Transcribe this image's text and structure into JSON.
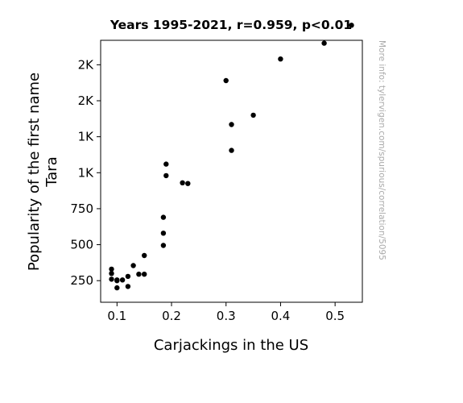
{
  "chart_data": {
    "type": "scatter",
    "title": "Years 1995-2021, r=0.959, p<0.01",
    "xlabel": "Carjackings in the US",
    "ylabel_lines": [
      "Popularity of the first name",
      "Tara"
    ],
    "side_note": "More info: tylervigen.com/spurious/correlation/5095",
    "xlim": [
      0.07,
      0.55
    ],
    "ylim": [
      100,
      1920
    ],
    "x_ticks": [
      {
        "value": 0.1,
        "label": "0.1"
      },
      {
        "value": 0.2,
        "label": "0.2"
      },
      {
        "value": 0.3,
        "label": "0.3"
      },
      {
        "value": 0.4,
        "label": "0.4"
      },
      {
        "value": 0.5,
        "label": "0.5"
      }
    ],
    "y_ticks": [
      {
        "value": 250,
        "label": "250"
      },
      {
        "value": 500,
        "label": "500"
      },
      {
        "value": 750,
        "label": "750"
      },
      {
        "value": 1000,
        "label": "1K"
      },
      {
        "value": 1250,
        "label": "1K"
      },
      {
        "value": 1500,
        "label": "2K"
      },
      {
        "value": 1750,
        "label": "2K"
      },
      {
        "value": 2000,
        "label": "2K"
      }
    ],
    "marker_color": "#000000",
    "points": [
      {
        "x": 0.09,
        "y": 330
      },
      {
        "x": 0.09,
        "y": 300
      },
      {
        "x": 0.09,
        "y": 260
      },
      {
        "x": 0.1,
        "y": 255
      },
      {
        "x": 0.1,
        "y": 250
      },
      {
        "x": 0.1,
        "y": 200
      },
      {
        "x": 0.11,
        "y": 255
      },
      {
        "x": 0.12,
        "y": 280
      },
      {
        "x": 0.12,
        "y": 210
      },
      {
        "x": 0.13,
        "y": 355
      },
      {
        "x": 0.14,
        "y": 295
      },
      {
        "x": 0.15,
        "y": 295
      },
      {
        "x": 0.15,
        "y": 425
      },
      {
        "x": 0.185,
        "y": 690
      },
      {
        "x": 0.185,
        "y": 580
      },
      {
        "x": 0.185,
        "y": 495
      },
      {
        "x": 0.19,
        "y": 1060
      },
      {
        "x": 0.19,
        "y": 980
      },
      {
        "x": 0.22,
        "y": 930
      },
      {
        "x": 0.23,
        "y": 925
      },
      {
        "x": 0.3,
        "y": 1640
      },
      {
        "x": 0.31,
        "y": 1335
      },
      {
        "x": 0.31,
        "y": 1155
      },
      {
        "x": 0.35,
        "y": 1400
      },
      {
        "x": 0.4,
        "y": 1790
      },
      {
        "x": 0.48,
        "y": 1900
      },
      {
        "x": 0.53,
        "y": 2025
      }
    ]
  }
}
